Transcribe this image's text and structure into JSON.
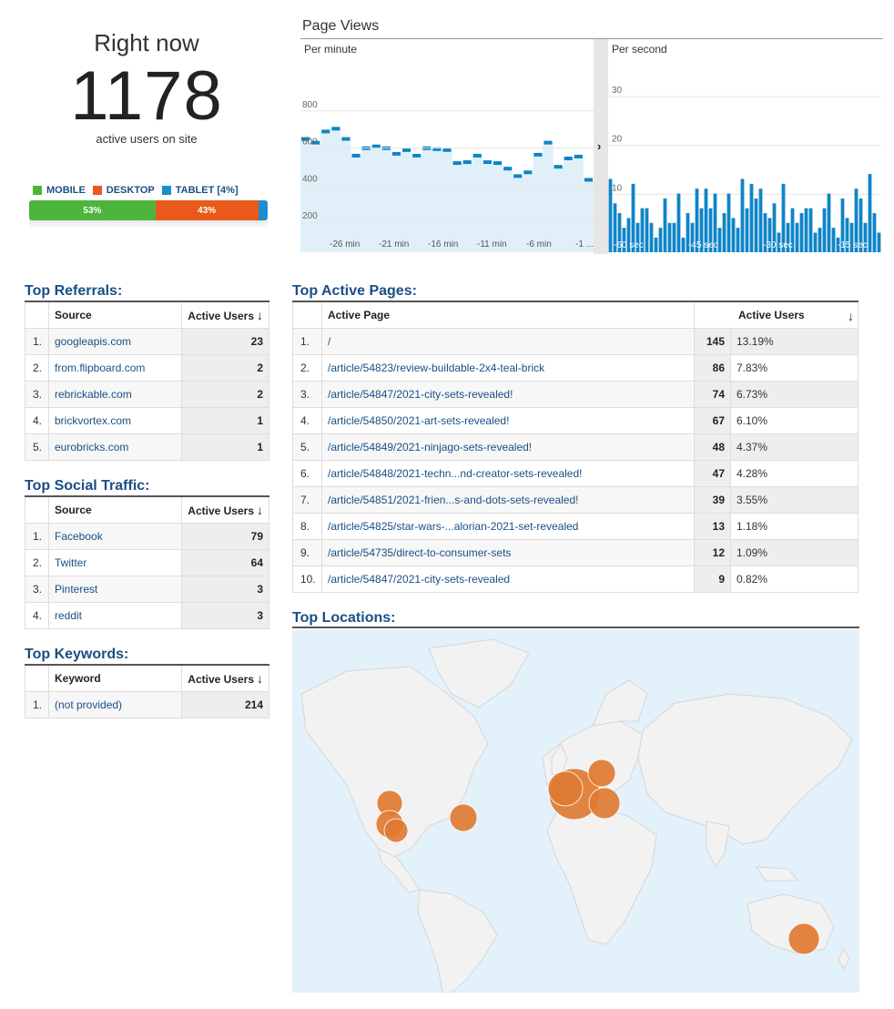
{
  "realtime": {
    "label": "Right now",
    "count": "1178",
    "sublabel": "active users on site",
    "devices": [
      {
        "name": "MOBILE",
        "percent": 53,
        "label": "53%",
        "color": "#4db53c"
      },
      {
        "name": "DESKTOP",
        "percent": 43,
        "label": "43%",
        "color": "#e8591a"
      },
      {
        "name": "TABLET [4%]",
        "percent": 4,
        "label": "",
        "color": "#1a8dd0"
      }
    ]
  },
  "pageviews": {
    "title": "Page Views",
    "per_minute_label": "Per minute",
    "per_second_label": "Per second",
    "expand_icon": "chevron-right-icon",
    "color": "#0f84c7"
  },
  "chart_data": [
    {
      "type": "area",
      "title": "Per minute",
      "y_ticks": [
        "800",
        "600",
        "400",
        "200"
      ],
      "ylim": [
        0,
        1000
      ],
      "x_ticks": [
        "-26 min",
        "-21 min",
        "-16 min",
        "-11 min",
        "-6 min",
        "-1 ..."
      ],
      "values": [
        610,
        590,
        650,
        665,
        610,
        520,
        560,
        570,
        560,
        530,
        550,
        520,
        560,
        555,
        550,
        480,
        485,
        520,
        485,
        480,
        450,
        410,
        430,
        525,
        590,
        460,
        505,
        515,
        390
      ]
    },
    {
      "type": "bar",
      "title": "Per second",
      "y_ticks": [
        "30",
        "20",
        "10"
      ],
      "ylim": [
        0,
        38
      ],
      "x_ticks": [
        "-60 sec",
        "-45 sec",
        "-30 sec",
        "-15 sec"
      ],
      "values": [
        15,
        10,
        8,
        5,
        7,
        14,
        6,
        9,
        9,
        6,
        3,
        5,
        11,
        6,
        6,
        12,
        3,
        8,
        6,
        13,
        9,
        13,
        9,
        12,
        5,
        8,
        12,
        7,
        5,
        15,
        9,
        14,
        11,
        13,
        8,
        7,
        10,
        4,
        14,
        6,
        9,
        6,
        8,
        9,
        9,
        4,
        5,
        9,
        12,
        5,
        3,
        11,
        7,
        6,
        13,
        11,
        6,
        16,
        8,
        4
      ]
    }
  ],
  "referrals": {
    "title": "Top Referrals:",
    "col_source": "Source",
    "col_users": "Active Users",
    "rows": [
      {
        "idx": "1.",
        "source": "googleapis.com",
        "users": "23"
      },
      {
        "idx": "2.",
        "source": "from.flipboard.com",
        "users": "2"
      },
      {
        "idx": "3.",
        "source": "rebrickable.com",
        "users": "2"
      },
      {
        "idx": "4.",
        "source": "brickvortex.com",
        "users": "1"
      },
      {
        "idx": "5.",
        "source": "eurobricks.com",
        "users": "1"
      }
    ]
  },
  "social": {
    "title": "Top Social Traffic:",
    "col_source": "Source",
    "col_users": "Active Users",
    "rows": [
      {
        "idx": "1.",
        "source": "Facebook",
        "users": "79"
      },
      {
        "idx": "2.",
        "source": "Twitter",
        "users": "64"
      },
      {
        "idx": "3.",
        "source": "Pinterest",
        "users": "3"
      },
      {
        "idx": "4.",
        "source": "reddit",
        "users": "3"
      }
    ]
  },
  "keywords": {
    "title": "Top Keywords:",
    "col_keyword": "Keyword",
    "col_users": "Active Users",
    "rows": [
      {
        "idx": "1.",
        "keyword": "(not provided)",
        "users": "214"
      }
    ]
  },
  "pages": {
    "title": "Top Active Pages:",
    "col_page": "Active Page",
    "col_users": "Active Users",
    "rows": [
      {
        "idx": "1.",
        "page": "/",
        "users": "145",
        "pct": "13.19%"
      },
      {
        "idx": "2.",
        "page": "/article/54823/review-buildable-2x4-teal-brick",
        "users": "86",
        "pct": "7.83%"
      },
      {
        "idx": "3.",
        "page": "/article/54847/2021-city-sets-revealed!",
        "users": "74",
        "pct": "6.73%"
      },
      {
        "idx": "4.",
        "page": "/article/54850/2021-art-sets-revealed!",
        "users": "67",
        "pct": "6.10%"
      },
      {
        "idx": "5.",
        "page": "/article/54849/2021-ninjago-sets-revealed!",
        "users": "48",
        "pct": "4.37%"
      },
      {
        "idx": "6.",
        "page": "/article/54848/2021-techn...nd-creator-sets-revealed!",
        "users": "47",
        "pct": "4.28%"
      },
      {
        "idx": "7.",
        "page": "/article/54851/2021-frien...s-and-dots-sets-revealed!",
        "users": "39",
        "pct": "3.55%"
      },
      {
        "idx": "8.",
        "page": "/article/54825/star-wars-...alorian-2021-set-revealed",
        "users": "13",
        "pct": "1.18%"
      },
      {
        "idx": "9.",
        "page": "/article/54735/direct-to-consumer-sets",
        "users": "12",
        "pct": "1.09%"
      },
      {
        "idx": "10.",
        "page": "/article/54847/2021-city-sets-revealed",
        "users": "9",
        "pct": "0.82%"
      }
    ]
  },
  "locations": {
    "title": "Top Locations:",
    "bubble_color": "#e07b33"
  }
}
